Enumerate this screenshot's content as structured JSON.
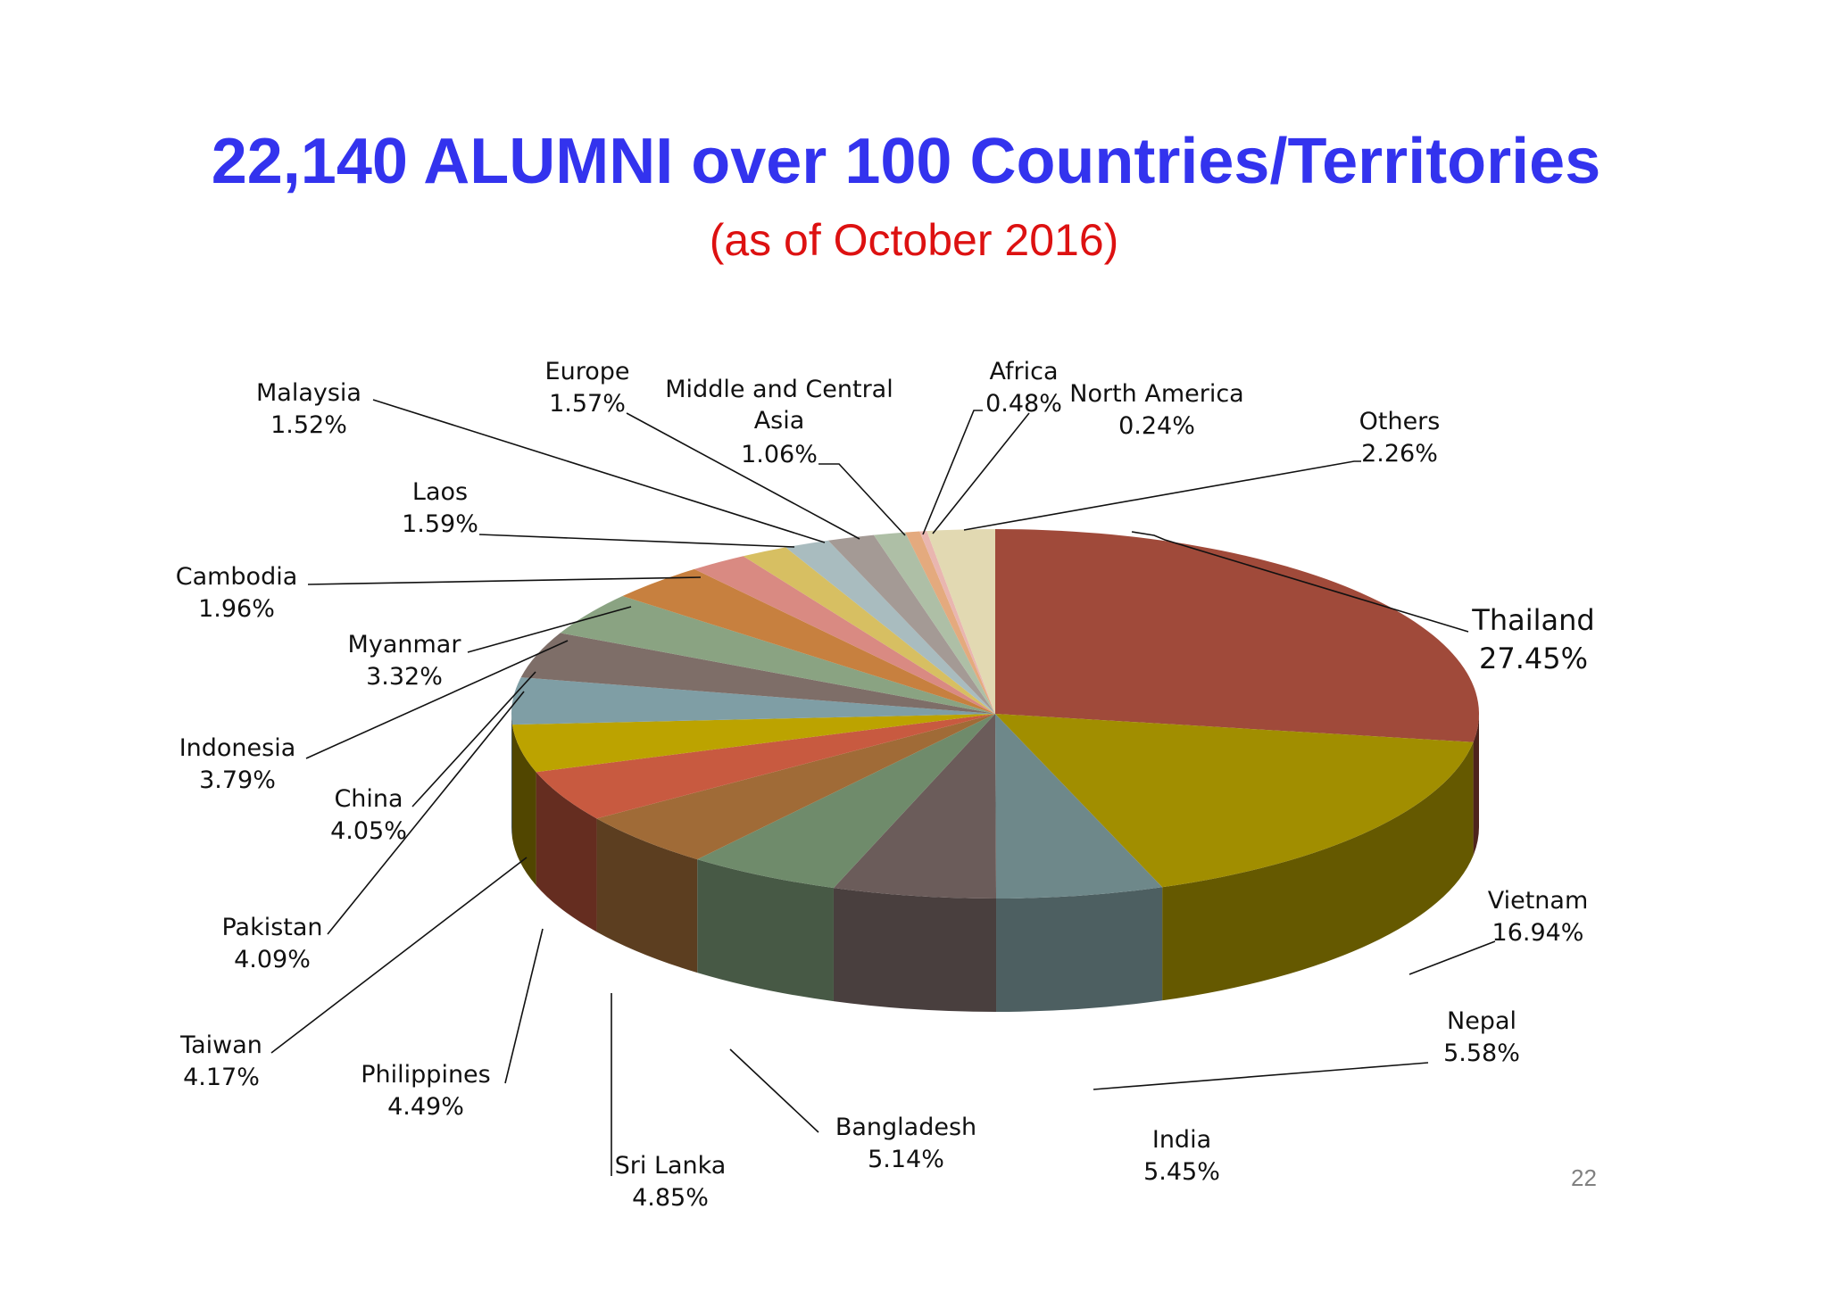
{
  "title": "22,140 ALUMNI over 100 Countries/Territories",
  "subtitle": "(as of October 2016)",
  "page_number": "22",
  "colors": {
    "title": "#3333ee",
    "subtitle": "#dd1111"
  },
  "chart_data": {
    "type": "pie",
    "style": "3d",
    "categories": [
      "Thailand",
      "Vietnam",
      "Nepal",
      "India",
      "Bangladesh",
      "Sri Lanka",
      "Philippines",
      "Taiwan",
      "Pakistan",
      "China",
      "Indonesia",
      "Myanmar",
      "Cambodia",
      "Laos",
      "Malaysia",
      "Europe",
      "Middle and Central Asia",
      "Africa",
      "North America",
      "Others"
    ],
    "values": [
      27.45,
      16.94,
      5.58,
      5.45,
      5.14,
      4.85,
      4.49,
      4.17,
      4.09,
      4.05,
      3.79,
      3.32,
      1.96,
      1.59,
      1.52,
      1.57,
      1.06,
      0.48,
      0.24,
      2.26
    ],
    "value_labels": [
      "27.45%",
      "16.94%",
      "5.58%",
      "5.45%",
      "5.14%",
      "4.85%",
      "4.49%",
      "4.17%",
      "4.09%",
      "4.05%",
      "3.79%",
      "3.32%",
      "1.96%",
      "1.59%",
      "1.52%",
      "1.57%",
      "1.06%",
      "0.48%",
      "0.24%",
      "2.26%"
    ],
    "colors": [
      "#a04a3a",
      "#a18e00",
      "#6e888a",
      "#6b5c5a",
      "#6f8b6b",
      "#a06b37",
      "#c85a40",
      "#bca300",
      "#7f9ea5",
      "#7e6e68",
      "#8aa382",
      "#c7803f",
      "#d98a82",
      "#d7bf62",
      "#a9bcbf",
      "#a49a95",
      "#aebfa6",
      "#e4aa7e",
      "#e9b6b0",
      "#e2d9b2"
    ]
  }
}
